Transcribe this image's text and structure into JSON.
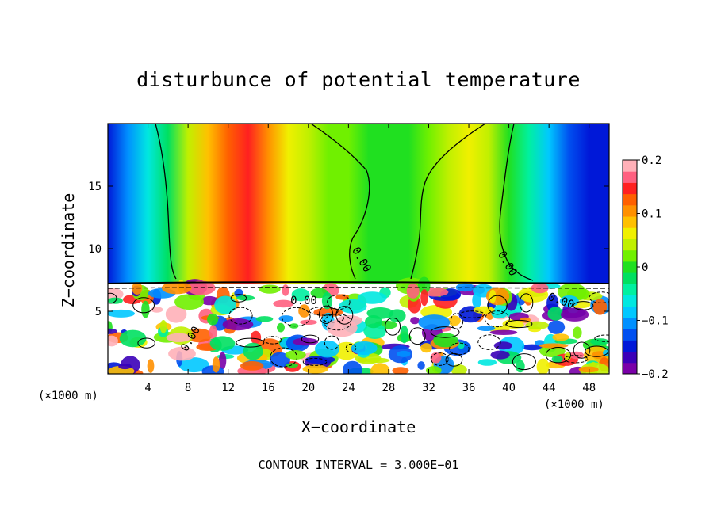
{
  "chart_data": {
    "type": "heatmap",
    "title": "disturbunce of potential temperature",
    "xlabel": "X−coordinate",
    "ylabel": "Z−coordinate",
    "x_unit_left": "(×1000 m)",
    "x_unit_right": "(×1000 m)",
    "xlim": [
      0,
      50
    ],
    "ylim": [
      0,
      20
    ],
    "x_ticks": [
      4,
      8,
      12,
      16,
      20,
      24,
      28,
      32,
      36,
      40,
      44,
      48
    ],
    "y_ticks": [
      5,
      10,
      15
    ],
    "colorbar": {
      "range": [
        -0.2,
        0.2
      ],
      "tick_values": [
        0.2,
        0.1,
        0,
        -0.1,
        -0.2
      ],
      "tick_labels": [
        "0.2",
        "0.1",
        "0",
        "−0.1",
        "−0.2"
      ],
      "colors": [
        "#7a00a8",
        "#3b00b8",
        "#0018d8",
        "#0050f0",
        "#0090ff",
        "#00c8ff",
        "#00e8e0",
        "#00f0a0",
        "#00e060",
        "#20e020",
        "#70f000",
        "#c0f000",
        "#f0f000",
        "#ffc000",
        "#ff9000",
        "#ff6000",
        "#ff2020",
        "#ff6080",
        "#ffb0b8"
      ]
    },
    "contour_label": "0.00",
    "contour_interval_text": "CONTOUR INTERVAL = 3.000E−01",
    "upper_profile": {
      "x": [
        0,
        2,
        4,
        6,
        8,
        10,
        12,
        14,
        16,
        18,
        20,
        22,
        24,
        26,
        28,
        30,
        32,
        34,
        36,
        38,
        40,
        42,
        44,
        46,
        48,
        50
      ],
      "theta": [
        -0.15,
        -0.11,
        -0.07,
        -0.02,
        0.04,
        0.09,
        0.13,
        0.14,
        0.11,
        0.07,
        0.05,
        0.03,
        0.02,
        0.01,
        0.01,
        0.01,
        0.02,
        0.05,
        0.07,
        0.04,
        0.0,
        -0.04,
        -0.08,
        -0.12,
        -0.14,
        -0.15
      ]
    }
  }
}
